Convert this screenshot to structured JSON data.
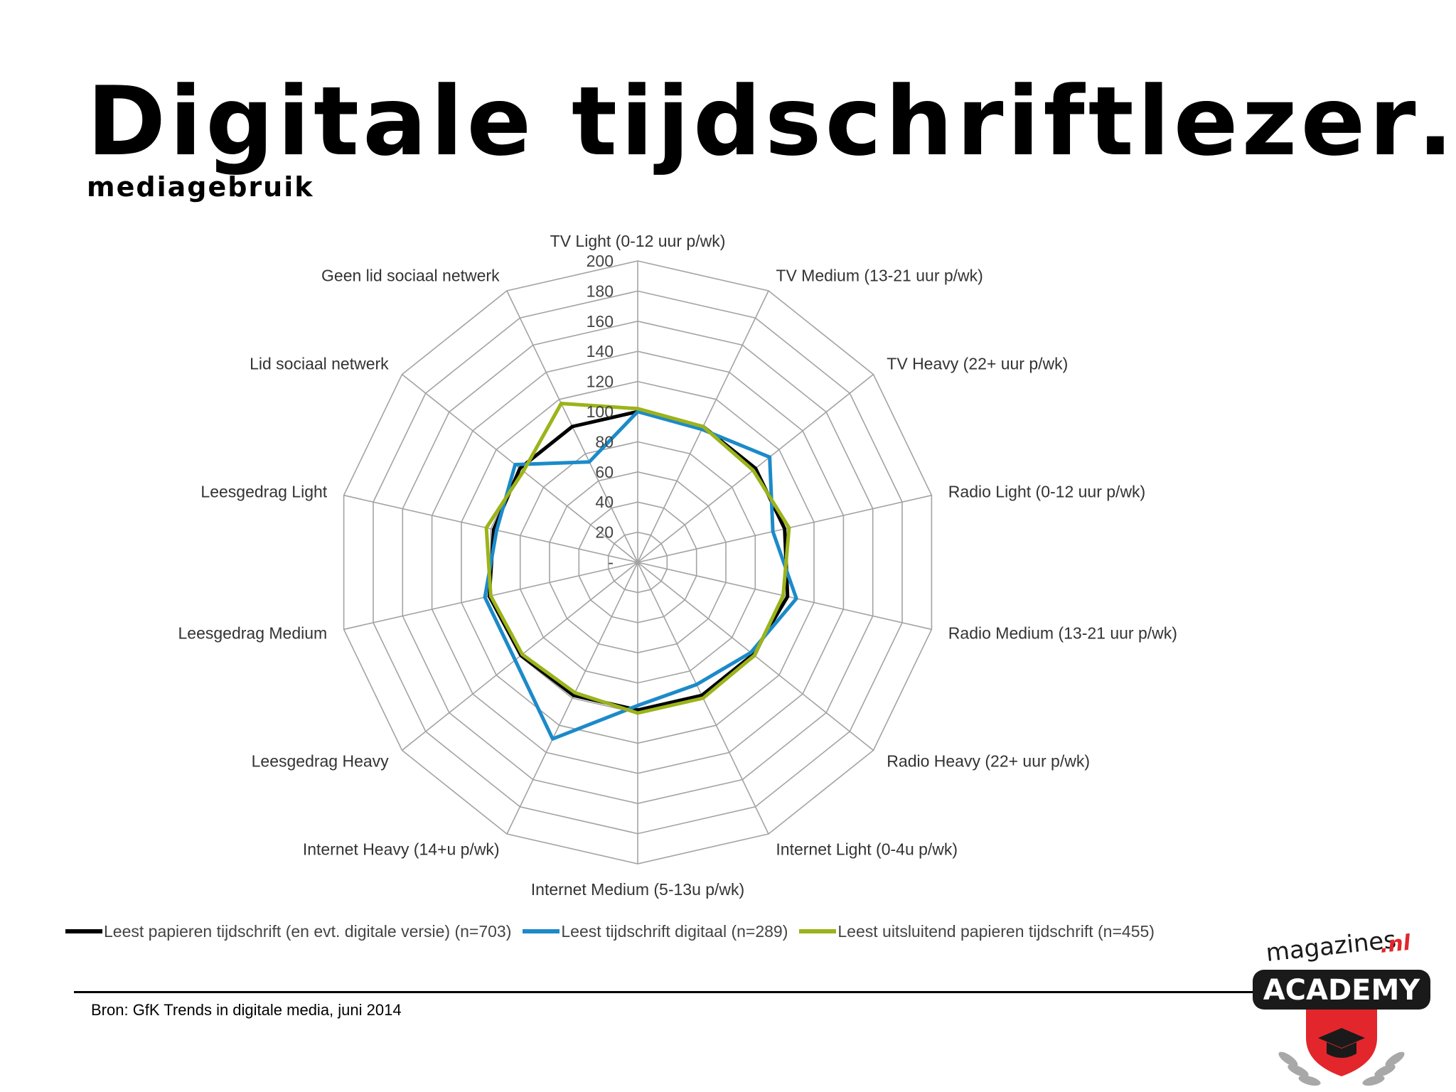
{
  "slide": {
    "title": "Digitale tijdschriftlezer…",
    "subtitle": "mediagebruik",
    "source": "Bron: GfK Trends in digitale media, juni 2014"
  },
  "logo": {
    "top_text": "magazines",
    "domain_text": ".nl",
    "badge_text": "ACADEMY",
    "colors": {
      "dark": "#1a1a1a",
      "red": "#e3262c",
      "silver": "#9a9a9a"
    }
  },
  "chart_data": {
    "type": "radar",
    "categories": [
      "TV Light (0-12 uur p/wk)",
      "TV Medium (13-21 uur p/wk)",
      "TV Heavy (22+ uur p/wk)",
      "Radio Light (0-12 uur p/wk)",
      "Radio Medium (13-21 uur p/wk)",
      "Radio Heavy (22+ uur p/wk)",
      "Internet Light (0-4u p/wk)",
      "Internet Medium (5-13u p/wk)",
      "Internet Heavy (14+u p/wk)",
      "Leesgedrag Heavy",
      "Leesgedrag Medium",
      "Leesgedrag Light",
      "Lid sociaal netwerk",
      "Geen lid sociaal netwerk"
    ],
    "axis": {
      "min": 0,
      "max": 200,
      "step": 20,
      "tick_labels": [
        "-",
        "20",
        "40",
        "60",
        "80",
        "100",
        "120",
        "140",
        "160",
        "180",
        "200"
      ]
    },
    "grid": true,
    "legend_position": "bottom",
    "series": [
      {
        "name": "Leest papieren tijdschrift (en evt. digitale versie) (n=703)",
        "color": "#000000",
        "values": [
          100,
          100,
          100,
          100,
          102,
          98,
          98,
          98,
          98,
          99,
          101,
          98,
          100,
          100
        ]
      },
      {
        "name": "Leest tijdschrift digitaal (n=289)",
        "color": "#1c8ac9",
        "values": [
          100,
          98,
          112,
          92,
          108,
          96,
          90,
          95,
          130,
          104,
          104,
          96,
          104,
          74
        ]
      },
      {
        "name": "Leest uitsluitend papieren tijdschrift (n=455)",
        "color": "#9cb31a",
        "values": [
          102,
          100,
          98,
          103,
          99,
          99,
          100,
          100,
          96,
          98,
          100,
          103,
          97,
          117
        ]
      }
    ]
  }
}
